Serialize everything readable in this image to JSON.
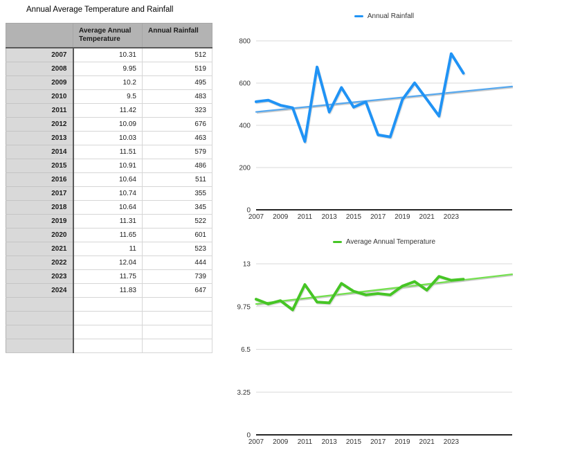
{
  "title": "Annual Average Temperature and Rainfall",
  "table": {
    "column_headers": [
      "",
      "Average Annual Temperature",
      "Annual Rainfall"
    ],
    "rows": [
      {
        "year": "2007",
        "temperature": "10.31",
        "rainfall": "512"
      },
      {
        "year": "2008",
        "temperature": "9.95",
        "rainfall": "519"
      },
      {
        "year": "2009",
        "temperature": "10.2",
        "rainfall": "495"
      },
      {
        "year": "2010",
        "temperature": "9.5",
        "rainfall": "483"
      },
      {
        "year": "2011",
        "temperature": "11.42",
        "rainfall": "323"
      },
      {
        "year": "2012",
        "temperature": "10.09",
        "rainfall": "676"
      },
      {
        "year": "2013",
        "temperature": "10.03",
        "rainfall": "463"
      },
      {
        "year": "2014",
        "temperature": "11.51",
        "rainfall": "579"
      },
      {
        "year": "2015",
        "temperature": "10.91",
        "rainfall": "486"
      },
      {
        "year": "2016",
        "temperature": "10.64",
        "rainfall": "511"
      },
      {
        "year": "2017",
        "temperature": "10.74",
        "rainfall": "355"
      },
      {
        "year": "2018",
        "temperature": "10.64",
        "rainfall": "345"
      },
      {
        "year": "2019",
        "temperature": "11.31",
        "rainfall": "522"
      },
      {
        "year": "2020",
        "temperature": "11.65",
        "rainfall": "601"
      },
      {
        "year": "2021",
        "temperature": "11",
        "rainfall": "523"
      },
      {
        "year": "2022",
        "temperature": "12.04",
        "rainfall": "444"
      },
      {
        "year": "2023",
        "temperature": "11.75",
        "rainfall": "739"
      },
      {
        "year": "2024",
        "temperature": "11.83",
        "rainfall": "647"
      }
    ],
    "empty_row_count": 4
  },
  "chart_data": [
    {
      "type": "line",
      "title": "Annual Rainfall",
      "legend_entries": [
        "Annual Rainfall"
      ],
      "legend_position": "top-center",
      "x": [
        2007,
        2008,
        2009,
        2010,
        2011,
        2012,
        2013,
        2014,
        2015,
        2016,
        2017,
        2018,
        2019,
        2020,
        2021,
        2022,
        2023,
        2024
      ],
      "x_tick_interval": 2,
      "extra_empty_categories": 4,
      "series": [
        {
          "name": "Annual Rainfall",
          "color": "#2093f5",
          "values": [
            512,
            519,
            495,
            483,
            323,
            676,
            463,
            579,
            486,
            511,
            355,
            345,
            522,
            601,
            523,
            444,
            739,
            647
          ]
        }
      ],
      "trendline": {
        "show": true,
        "color": "#55a8ef"
      },
      "ylim": [
        0,
        800
      ],
      "y_ticks": [
        0,
        200,
        400,
        600,
        800
      ],
      "grid": true
    },
    {
      "type": "line",
      "title": "Average Annual Temperature",
      "legend_entries": [
        "Average Annual Temperature"
      ],
      "legend_position": "top-center",
      "x": [
        2007,
        2008,
        2009,
        2010,
        2011,
        2012,
        2013,
        2014,
        2015,
        2016,
        2017,
        2018,
        2019,
        2020,
        2021,
        2022,
        2023,
        2024
      ],
      "x_tick_interval": 2,
      "extra_empty_categories": 4,
      "series": [
        {
          "name": "Average Annual Temperature",
          "color": "#46c525",
          "values": [
            10.31,
            9.95,
            10.2,
            9.5,
            11.42,
            10.09,
            10.03,
            11.51,
            10.91,
            10.64,
            10.74,
            10.64,
            11.31,
            11.65,
            11,
            12.04,
            11.75,
            11.83
          ]
        }
      ],
      "trendline": {
        "show": true,
        "color": "#72e14c"
      },
      "ylim": [
        0,
        13
      ],
      "y_ticks": [
        0,
        3.25,
        6.5,
        9.75,
        13
      ],
      "grid": true
    }
  ]
}
